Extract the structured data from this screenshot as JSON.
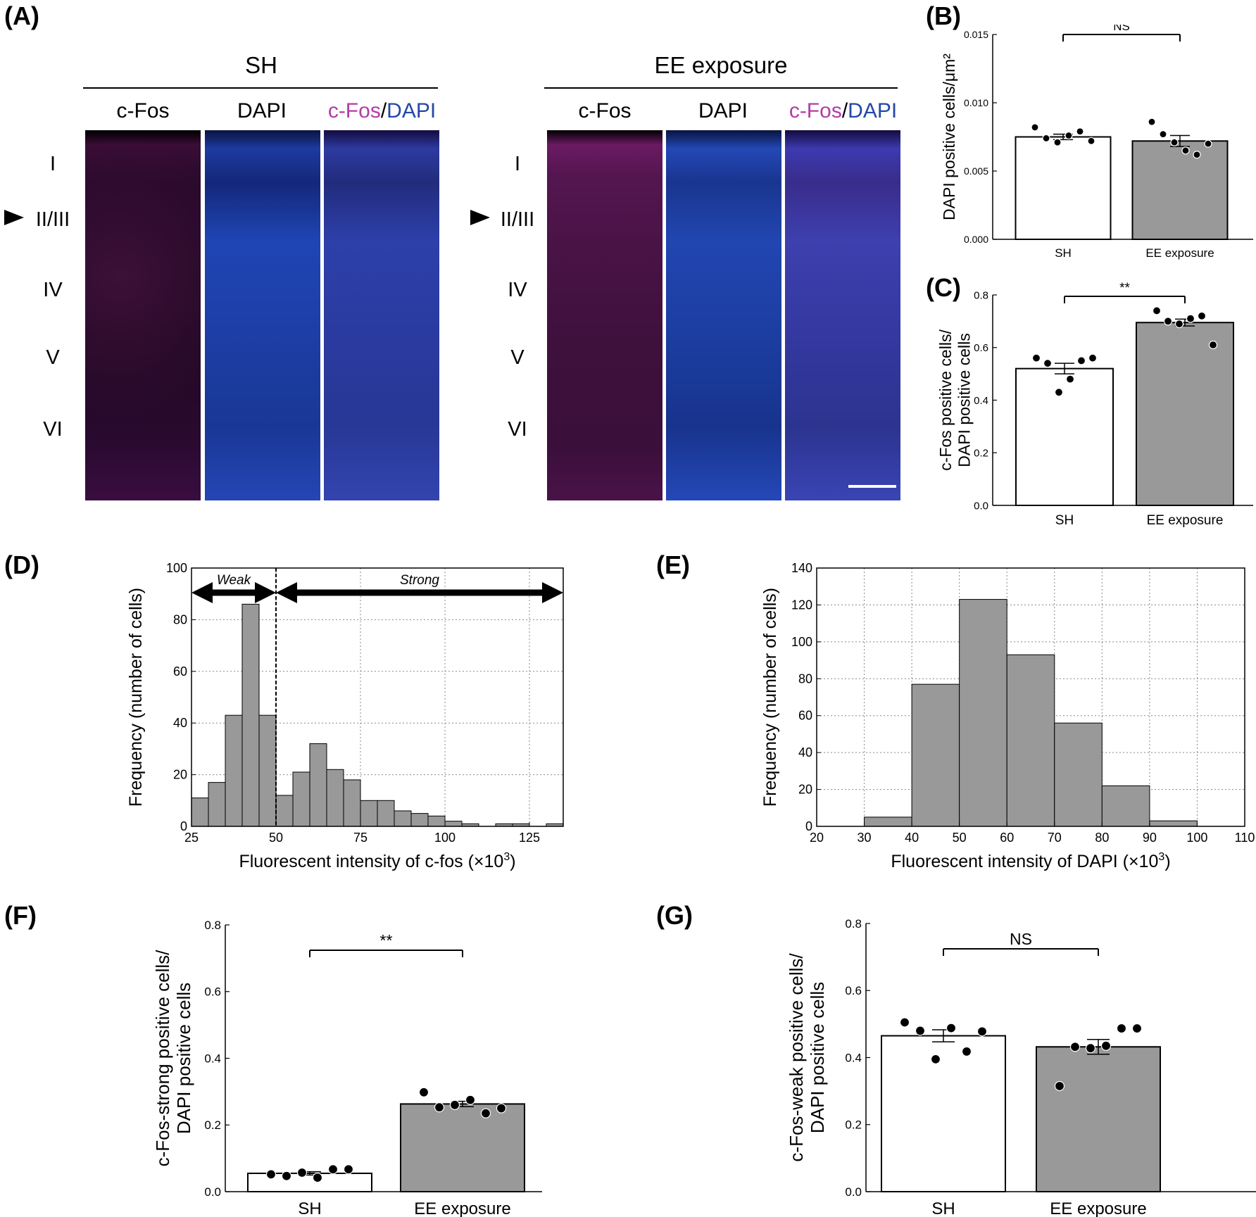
{
  "panel_labels": {
    "A": "(A)",
    "B": "(B)",
    "C": "(C)",
    "D": "(D)",
    "E": "(E)",
    "F": "(F)",
    "G": "(G)"
  },
  "panel_a": {
    "groups": [
      {
        "title": "SH",
        "channels": [
          "c-Fos",
          "DAPI",
          "c-Fos",
          "/",
          "DAPI"
        ]
      },
      {
        "title": "EE exposure",
        "channels": [
          "c-Fos",
          "DAPI",
          "c-Fos",
          "/",
          "DAPI"
        ]
      }
    ],
    "layers": [
      "I",
      "II/III",
      "IV",
      "V",
      "VI"
    ],
    "colors": {
      "cfos": "#b33ca6",
      "dapi": "#2448a8"
    }
  },
  "chart_data": [
    {
      "id": "B",
      "type": "bar",
      "categories": [
        "SH",
        "EE exposure"
      ],
      "values": [
        0.0075,
        0.0072
      ],
      "sem": [
        0.0002,
        0.0004
      ],
      "points": [
        [
          0.0082,
          0.0074,
          0.0071,
          0.0076,
          0.0079,
          0.0072
        ],
        [
          0.0086,
          0.0077,
          0.0071,
          0.0065,
          0.0062,
          0.007
        ]
      ],
      "ylabel": "DAPI positive cells/μm²",
      "ylim": [
        0,
        0.015
      ],
      "yticks": [
        "0.000",
        "0.005",
        "0.010",
        "0.015"
      ],
      "significance": "NS",
      "bar_colors": [
        "#ffffff",
        "#999999"
      ]
    },
    {
      "id": "C",
      "type": "bar",
      "categories": [
        "SH",
        "EE exposure"
      ],
      "values": [
        0.52,
        0.695
      ],
      "sem": [
        0.02,
        0.013
      ],
      "points": [
        [
          0.56,
          0.54,
          0.43,
          0.48,
          0.55,
          0.56
        ],
        [
          0.74,
          0.7,
          0.69,
          0.71,
          0.72,
          0.61
        ]
      ],
      "ylabel": [
        "c-Fos positive cells/",
        "DAPI positive cells"
      ],
      "ylim": [
        0,
        0.8
      ],
      "yticks": [
        "0.0",
        "0.2",
        "0.4",
        "0.6",
        "0.8"
      ],
      "significance": "**",
      "bar_colors": [
        "#ffffff",
        "#999999"
      ]
    },
    {
      "id": "D",
      "type": "histogram",
      "bin_edges": [
        25,
        30,
        35,
        40,
        45,
        50,
        55,
        60,
        65,
        70,
        75,
        80,
        85,
        90,
        95,
        100,
        105,
        110,
        115,
        120,
        125,
        130,
        135
      ],
      "counts": [
        11,
        17,
        43,
        86,
        43,
        12,
        21,
        32,
        22,
        18,
        10,
        10,
        6,
        5,
        4,
        2,
        1,
        0,
        1,
        1,
        0,
        1
      ],
      "xlabel": "Fluorescent intensity of c-fos (×10",
      "xlabel_sup": "3",
      "xlabel_end": ")",
      "ylabel": "Frequency (number of cells)",
      "xlim": [
        25,
        135
      ],
      "ylim": [
        0,
        100
      ],
      "xticks": [
        "25",
        "50",
        "75",
        "100",
        "125"
      ],
      "yticks": [
        "0",
        "20",
        "40",
        "60",
        "80",
        "100"
      ],
      "threshold": 50,
      "annotations": {
        "weak": "Weak",
        "strong": "Strong"
      },
      "grid": true
    },
    {
      "id": "E",
      "type": "histogram",
      "bin_edges": [
        30,
        40,
        50,
        60,
        70,
        80,
        90,
        100
      ],
      "counts": [
        5,
        77,
        123,
        93,
        56,
        22,
        3
      ],
      "xlabel": "Fluorescent intensity of DAPI (×10",
      "xlabel_sup": "3",
      "xlabel_end": ")",
      "ylabel": "Frequency (number of cells)",
      "xlim": [
        20,
        110
      ],
      "ylim": [
        0,
        140
      ],
      "xticks": [
        "20",
        "30",
        "40",
        "50",
        "60",
        "70",
        "80",
        "90",
        "100",
        "110"
      ],
      "yticks": [
        "0",
        "20",
        "40",
        "60",
        "80",
        "100",
        "120",
        "140"
      ],
      "grid": true
    },
    {
      "id": "F",
      "type": "bar",
      "categories": [
        "SH",
        "EE exposure"
      ],
      "values": [
        0.055,
        0.263
      ],
      "sem": [
        0.005,
        0.008
      ],
      "points": [
        [
          0.052,
          0.047,
          0.057,
          0.042,
          0.067,
          0.067
        ],
        [
          0.298,
          0.253,
          0.26,
          0.275,
          0.235,
          0.25
        ]
      ],
      "ylabel": [
        "c-Fos-strong positive cells/",
        "DAPI positive cells"
      ],
      "ylim": [
        0,
        0.8
      ],
      "yticks": [
        "0.0",
        "0.2",
        "0.4",
        "0.6",
        "0.8"
      ],
      "significance": "**",
      "bar_colors": [
        "#ffffff",
        "#999999"
      ]
    },
    {
      "id": "G",
      "type": "bar",
      "categories": [
        "SH",
        "EE exposure"
      ],
      "values": [
        0.465,
        0.432
      ],
      "sem": [
        0.018,
        0.022
      ],
      "points": [
        [
          0.505,
          0.48,
          0.395,
          0.488,
          0.418,
          0.478
        ],
        [
          0.315,
          0.432,
          0.428,
          0.435,
          0.487,
          0.487
        ]
      ],
      "ylabel": [
        "c-Fos-weak positive cells/",
        "DAPI positive cells"
      ],
      "ylim": [
        0,
        0.8
      ],
      "yticks": [
        "0.0",
        "0.2",
        "0.4",
        "0.6",
        "0.8"
      ],
      "significance": "NS",
      "bar_colors": [
        "#ffffff",
        "#999999"
      ]
    }
  ]
}
